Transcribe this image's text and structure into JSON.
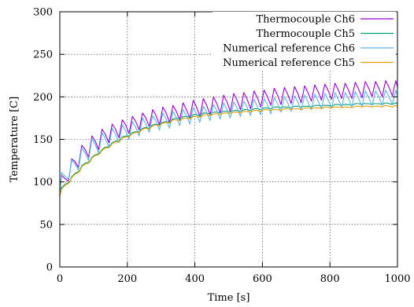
{
  "chart_data": {
    "type": "line",
    "xlabel": "Time [s]",
    "ylabel": "Temperature [C]",
    "xlim": [
      0,
      1000
    ],
    "ylim": [
      0,
      300
    ],
    "xticks": [
      0,
      200,
      400,
      600,
      800,
      1000
    ],
    "yticks": [
      0,
      50,
      100,
      150,
      200,
      250,
      300
    ],
    "grid": true,
    "legend_position": "top-right",
    "series": [
      {
        "name": "Thermocouple Ch6",
        "color": "#9400d3",
        "x": [
          0,
          5,
          15,
          25,
          30,
          35,
          45,
          55,
          60,
          65,
          75,
          85,
          90,
          95,
          105,
          115,
          120,
          125,
          135,
          145,
          150,
          155,
          165,
          175,
          180,
          185,
          195,
          205,
          210,
          215,
          225,
          235,
          240,
          245,
          255,
          265,
          270,
          275,
          285,
          295,
          300,
          305,
          315,
          325,
          330,
          335,
          345,
          355,
          360,
          365,
          375,
          385,
          390,
          395,
          405,
          415,
          420,
          425,
          435,
          445,
          450,
          455,
          465,
          475,
          480,
          485,
          495,
          505,
          510,
          515,
          525,
          535,
          540,
          545,
          555,
          565,
          570,
          575,
          585,
          595,
          600,
          605,
          615,
          625,
          630,
          635,
          645,
          655,
          660,
          665,
          675,
          685,
          690,
          695,
          705,
          715,
          720,
          725,
          735,
          745,
          750,
          755,
          765,
          775,
          780,
          785,
          795,
          805,
          810,
          815,
          825,
          835,
          840,
          845,
          855,
          865,
          870,
          875,
          885,
          895,
          900,
          905,
          915,
          925,
          930,
          935,
          945,
          955,
          960,
          965,
          975,
          985,
          990,
          995,
          1000
        ],
        "y": [
          85,
          108,
          104,
          101,
          112,
          127,
          124,
          117,
          130,
          143,
          138,
          129,
          141,
          154,
          148,
          138,
          150,
          162,
          156,
          146,
          157,
          168,
          162,
          152,
          162,
          173,
          167,
          157,
          167,
          177,
          171,
          161,
          171,
          181,
          175,
          165,
          175,
          185,
          178,
          167,
          177,
          188,
          181,
          170,
          180,
          190,
          183,
          173,
          183,
          193,
          185,
          175,
          185,
          196,
          188,
          177,
          187,
          198,
          190,
          179,
          189,
          200,
          192,
          181,
          191,
          202,
          194,
          183,
          193,
          204,
          196,
          185,
          195,
          205,
          197,
          186,
          196,
          207,
          199,
          188,
          198,
          208,
          200,
          190,
          200,
          210,
          202,
          191,
          201,
          211,
          203,
          192,
          202,
          212,
          204,
          193,
          203,
          213,
          205,
          195,
          205,
          214,
          206,
          196,
          206,
          215,
          207,
          197,
          207,
          216,
          208,
          198,
          208,
          216,
          208,
          198,
          208,
          217,
          209,
          199,
          209,
          218,
          210,
          200,
          210,
          218,
          210,
          200,
          210,
          219,
          211,
          201,
          211,
          219,
          211
        ]
      },
      {
        "name": "Thermocouple Ch5",
        "color": "#009e73",
        "x": [
          0,
          5,
          15,
          25,
          30,
          35,
          45,
          55,
          60,
          65,
          75,
          85,
          90,
          95,
          105,
          115,
          120,
          125,
          135,
          145,
          150,
          155,
          165,
          175,
          180,
          185,
          195,
          205,
          210,
          215,
          225,
          235,
          240,
          245,
          255,
          265,
          270,
          275,
          285,
          295,
          300,
          305,
          315,
          325,
          330,
          335,
          345,
          355,
          360,
          365,
          375,
          385,
          390,
          395,
          405,
          415,
          420,
          425,
          435,
          445,
          450,
          455,
          465,
          475,
          480,
          485,
          495,
          505,
          510,
          515,
          525,
          535,
          540,
          545,
          555,
          565,
          570,
          575,
          585,
          595,
          600,
          605,
          615,
          625,
          630,
          635,
          645,
          655,
          660,
          665,
          675,
          685,
          690,
          695,
          705,
          715,
          720,
          725,
          735,
          745,
          750,
          755,
          765,
          775,
          780,
          785,
          795,
          805,
          810,
          815,
          825,
          835,
          840,
          845,
          855,
          865,
          870,
          875,
          885,
          895,
          900,
          905,
          915,
          925,
          930,
          935,
          945,
          955,
          960,
          965,
          975,
          985,
          990,
          995,
          1000
        ],
        "y": [
          83,
          93,
          97,
          99,
          101,
          106,
          110,
          112,
          114,
          119,
          122,
          123,
          125,
          129,
          132,
          133,
          135,
          138,
          141,
          141,
          143,
          146,
          148,
          148,
          150,
          153,
          154,
          154,
          156,
          158,
          159,
          159,
          161,
          163,
          164,
          163,
          165,
          167,
          168,
          167,
          169,
          170,
          171,
          170,
          172,
          174,
          175,
          174,
          175,
          177,
          177,
          176,
          177,
          179,
          179,
          178,
          179,
          181,
          181,
          180,
          181,
          182,
          182,
          181,
          182,
          183,
          183,
          182,
          183,
          184,
          184,
          183,
          184,
          185,
          185,
          184,
          185,
          186,
          186,
          185,
          186,
          187,
          187,
          186,
          187,
          188,
          188,
          187,
          188,
          188,
          188,
          187,
          188,
          189,
          189,
          188,
          189,
          189,
          189,
          188,
          189,
          190,
          190,
          189,
          190,
          190,
          190,
          189,
          190,
          191,
          191,
          190,
          191,
          191,
          191,
          190,
          191,
          192,
          192,
          191,
          192,
          192,
          192,
          191,
          192,
          192,
          192,
          191,
          192,
          193,
          192,
          191,
          192,
          193,
          192
        ]
      },
      {
        "name": "Numerical reference Ch6",
        "color": "#56b4e9",
        "x": [
          0,
          5,
          15,
          25,
          30,
          35,
          45,
          55,
          60,
          65,
          75,
          85,
          90,
          95,
          105,
          115,
          120,
          125,
          135,
          145,
          150,
          155,
          165,
          175,
          180,
          185,
          195,
          205,
          210,
          215,
          225,
          235,
          240,
          245,
          255,
          265,
          270,
          275,
          285,
          295,
          300,
          305,
          315,
          325,
          330,
          335,
          345,
          355,
          360,
          365,
          375,
          385,
          390,
          395,
          405,
          415,
          420,
          425,
          435,
          445,
          450,
          455,
          465,
          475,
          480,
          485,
          495,
          505,
          510,
          515,
          525,
          535,
          540,
          545,
          555,
          565,
          570,
          575,
          585,
          595,
          600,
          605,
          615,
          625,
          630,
          635,
          645,
          655,
          660,
          665,
          675,
          685,
          690,
          695,
          705,
          715,
          720,
          725,
          735,
          745,
          750,
          755,
          765,
          775,
          780,
          785,
          795,
          805,
          810,
          815,
          825,
          835,
          840,
          845,
          855,
          865,
          870,
          875,
          885,
          895,
          900,
          905,
          915,
          925,
          930,
          935,
          945,
          955,
          960,
          965,
          975,
          985,
          990,
          995,
          1000
        ],
        "y": [
          85,
          111,
          107,
          103,
          112,
          126,
          121,
          114,
          127,
          140,
          134,
          125,
          138,
          151,
          144,
          134,
          146,
          158,
          151,
          141,
          152,
          163,
          156,
          146,
          157,
          167,
          160,
          150,
          161,
          171,
          164,
          154,
          165,
          175,
          168,
          158,
          168,
          178,
          171,
          161,
          171,
          181,
          174,
          163,
          173,
          183,
          176,
          166,
          176,
          185,
          178,
          168,
          178,
          187,
          180,
          170,
          180,
          189,
          182,
          172,
          182,
          191,
          184,
          174,
          183,
          193,
          185,
          175,
          185,
          194,
          187,
          177,
          187,
          195,
          188,
          178,
          188,
          197,
          189,
          179,
          189,
          198,
          191,
          180,
          190,
          199,
          192,
          182,
          191,
          200,
          193,
          183,
          192,
          201,
          194,
          184,
          193,
          202,
          194,
          185,
          194,
          203,
          195,
          186,
          195,
          204,
          196,
          187,
          196,
          205,
          197,
          188,
          197,
          205,
          198,
          188,
          198,
          206,
          198,
          189,
          198,
          207,
          199,
          190,
          199,
          207,
          200,
          190,
          200,
          208,
          200,
          191,
          200,
          208,
          201
        ]
      },
      {
        "name": "Numerical reference Ch5",
        "color": "#e69f00",
        "x": [
          0,
          5,
          15,
          25,
          30,
          35,
          45,
          55,
          60,
          65,
          75,
          85,
          90,
          95,
          105,
          115,
          120,
          125,
          135,
          145,
          150,
          155,
          165,
          175,
          180,
          185,
          195,
          205,
          210,
          215,
          225,
          235,
          240,
          245,
          255,
          265,
          270,
          275,
          285,
          295,
          300,
          305,
          315,
          325,
          330,
          335,
          345,
          355,
          360,
          365,
          375,
          385,
          390,
          395,
          405,
          415,
          420,
          425,
          435,
          445,
          450,
          455,
          465,
          475,
          480,
          485,
          495,
          505,
          510,
          515,
          525,
          535,
          540,
          545,
          555,
          565,
          570,
          575,
          585,
          595,
          600,
          605,
          615,
          625,
          630,
          635,
          645,
          655,
          660,
          665,
          675,
          685,
          690,
          695,
          705,
          715,
          720,
          725,
          735,
          745,
          750,
          755,
          765,
          775,
          780,
          785,
          795,
          805,
          810,
          815,
          825,
          835,
          840,
          845,
          855,
          865,
          870,
          875,
          885,
          895,
          900,
          905,
          915,
          925,
          930,
          935,
          945,
          955,
          960,
          965,
          975,
          985,
          990,
          995,
          1000
        ],
        "y": [
          83,
          91,
          96,
          98,
          100,
          105,
          109,
          111,
          113,
          118,
          121,
          122,
          124,
          128,
          131,
          132,
          134,
          137,
          140,
          140,
          142,
          145,
          147,
          147,
          149,
          152,
          153,
          153,
          155,
          157,
          158,
          158,
          160,
          162,
          163,
          162,
          164,
          166,
          167,
          166,
          168,
          169,
          170,
          169,
          171,
          173,
          173,
          172,
          173,
          175,
          175,
          174,
          175,
          177,
          177,
          176,
          177,
          179,
          179,
          178,
          179,
          180,
          180,
          179,
          180,
          181,
          181,
          180,
          181,
          182,
          182,
          181,
          182,
          183,
          183,
          182,
          183,
          184,
          184,
          183,
          184,
          185,
          185,
          184,
          185,
          185,
          185,
          184,
          185,
          186,
          186,
          185,
          186,
          186,
          186,
          185,
          186,
          187,
          187,
          186,
          187,
          187,
          187,
          186,
          187,
          188,
          188,
          187,
          188,
          188,
          188,
          187,
          188,
          188,
          188,
          187,
          188,
          189,
          189,
          188,
          189,
          189,
          189,
          188,
          189,
          189,
          189,
          188,
          189,
          190,
          189,
          188,
          189,
          190,
          189
        ]
      }
    ]
  }
}
